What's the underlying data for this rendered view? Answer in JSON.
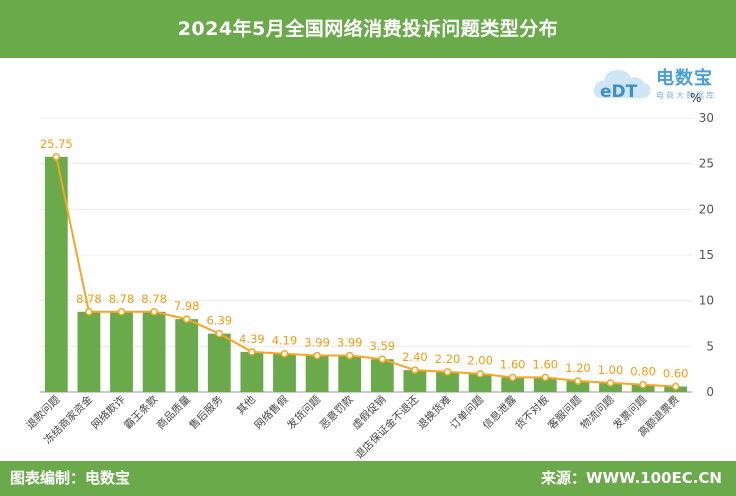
{
  "header": {
    "title": "2024年5月全国网络消费投诉问题类型分布",
    "color": "#6aaa4a"
  },
  "footer": {
    "left": "图表编制：电数宝",
    "right": "来源：WWW.100EC.CN"
  },
  "logo": {
    "name": "电数宝",
    "sub": "电商大数据库",
    "mark": "eDT"
  },
  "chart_data": {
    "type": "bar",
    "unit": "%",
    "categories": [
      "退款问题",
      "冻结商家资金",
      "网络欺诈",
      "霸王条款",
      "商品质量",
      "售后服务",
      "其他",
      "网络售假",
      "发货问题",
      "恶意罚款",
      "虚假促销",
      "退店保证金不退还",
      "退换货难",
      "订单问题",
      "信息泄露",
      "货不对板",
      "客服问题",
      "物流问题",
      "发票问题",
      "高额退票费"
    ],
    "values": [
      25.75,
      8.78,
      8.78,
      8.78,
      7.98,
      6.39,
      4.39,
      4.19,
      3.99,
      3.99,
      3.59,
      2.4,
      2.2,
      2.0,
      1.6,
      1.6,
      1.2,
      1.0,
      0.8,
      0.6
    ],
    "labels": [
      "25.75",
      "8.78",
      "8.78",
      "8.78",
      "7.98",
      "6.39",
      "4.39",
      "4.19",
      "3.99",
      "3.99",
      "3.59",
      "2.40",
      "2.20",
      "2.00",
      "1.60",
      "1.60",
      "1.20",
      "1.00",
      "0.80",
      "0.60"
    ],
    "ylim": [
      0,
      30
    ],
    "yticks": [
      0,
      5,
      10,
      15,
      20,
      25,
      30
    ],
    "ytick_labels": [
      "0",
      "5",
      "10",
      "15",
      "20",
      "25",
      "30"
    ],
    "grid": true,
    "bar_color": "#6aaa4a",
    "line_color": "#f5a623"
  }
}
